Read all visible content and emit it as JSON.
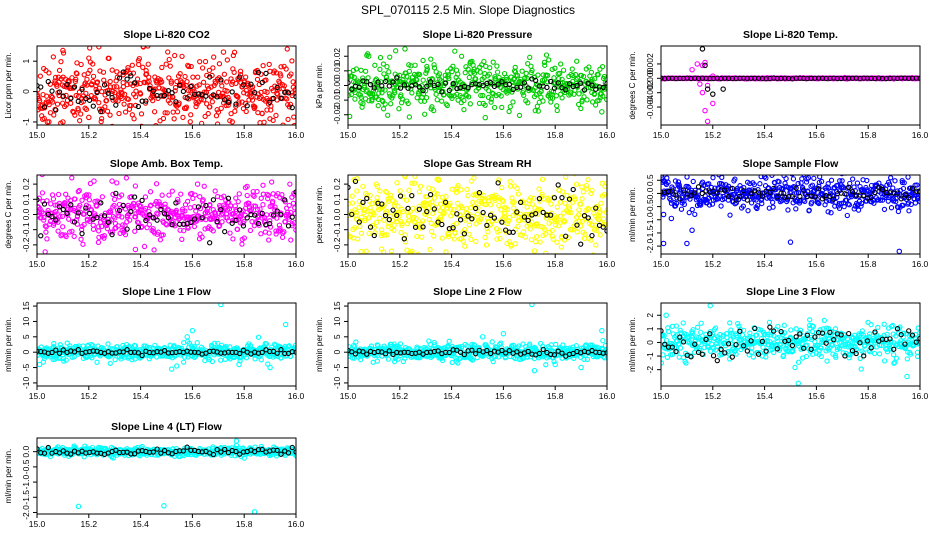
{
  "figure_title": "SPL_070115  2.5 Min. Slope Diagnostics",
  "chart_data": [
    {
      "type": "scatter",
      "title": "Slope Li-820 CO2",
      "ylabel": "Licor ppm per min.",
      "color": "#ff0000",
      "xlim": [
        15.0,
        16.0
      ],
      "ylim": [
        -1.1,
        1.5
      ],
      "xticks": [
        15.0,
        15.2,
        15.4,
        15.6,
        15.8,
        16.0
      ],
      "yticks": [
        -1,
        0,
        1
      ],
      "ytick_labels": [
        "-1",
        "0",
        "1"
      ],
      "spread": 0.55,
      "black_spread": 0.3,
      "outliers": [
        [
          15.04,
          -1.0
        ],
        [
          15.1,
          -1.0
        ],
        [
          15.2,
          -0.85
        ],
        [
          15.1,
          1.35
        ],
        [
          15.72,
          1.3
        ],
        [
          15.57,
          -0.55
        ]
      ]
    },
    {
      "type": "scatter",
      "title": "Slope Li-820 Pressure",
      "ylabel": "kPa per min.",
      "color": "#00cc00",
      "xlim": [
        15.0,
        16.0
      ],
      "ylim": [
        -0.027,
        0.027
      ],
      "xticks": [
        15.0,
        15.2,
        15.4,
        15.6,
        15.8,
        16.0
      ],
      "yticks": [
        -0.02,
        -0.01,
        0.0,
        0.01,
        0.02
      ],
      "ytick_labels": [
        "-0.02",
        "-0.01",
        "0.00",
        "0.01",
        "0.02"
      ],
      "spread": 0.008,
      "black_spread": 0.002,
      "outliers": [
        [
          15.22,
          0.025
        ],
        [
          15.53,
          -0.022
        ],
        [
          15.98,
          -0.018
        ],
        [
          15.08,
          0.02
        ]
      ]
    },
    {
      "type": "scatter",
      "title": "Slope Li-820 Temp.",
      "ylabel": "degrees C per min.",
      "color": "#ff00ff",
      "xlim": [
        15.0,
        16.0
      ],
      "ylim": [
        -0.0065,
        0.0045
      ],
      "xticks": [
        15.0,
        15.2,
        15.4,
        15.6,
        15.8,
        16.0
      ],
      "yticks": [
        -0.004,
        -0.002,
        0.0,
        0.002
      ],
      "ytick_labels": [
        "-0.004",
        "-0.002",
        "0.000",
        "0.002"
      ],
      "spread": 3e-05,
      "black_spread": 2e-05,
      "outliers": [
        [
          15.16,
          0.0018
        ],
        [
          15.17,
          0.0022
        ],
        [
          15.14,
          0.002
        ],
        [
          15.12,
          0.0012
        ],
        [
          15.18,
          -0.001
        ],
        [
          15.16,
          -0.002
        ],
        [
          15.2,
          -0.0035
        ],
        [
          15.17,
          -0.0045
        ],
        [
          15.18,
          -0.006
        ],
        [
          15.2,
          0.0003
        ],
        [
          15.15,
          -0.0008
        ]
      ],
      "black_outliers": [
        [
          15.16,
          0.0041
        ],
        [
          15.17,
          0.0018
        ],
        [
          15.18,
          -0.0015
        ],
        [
          15.2,
          -0.0022
        ],
        [
          15.24,
          -0.0015
        ]
      ]
    },
    {
      "type": "scatter",
      "title": "Slope Amb. Box Temp.",
      "ylabel": "degrees C per min.",
      "color": "#ff00ff",
      "xlim": [
        15.0,
        16.0
      ],
      "ylim": [
        -0.26,
        0.26
      ],
      "xticks": [
        15.0,
        15.2,
        15.4,
        15.6,
        15.8,
        16.0
      ],
      "yticks": [
        -0.2,
        -0.1,
        0.0,
        0.1,
        0.2
      ],
      "ytick_labels": [
        "-0.2",
        "-0.1",
        "0.0",
        "0.1",
        "0.2"
      ],
      "spread": 0.09,
      "black_spread": 0.06,
      "outliers": [
        [
          15.22,
          0.22
        ],
        [
          15.29,
          0.22
        ],
        [
          15.38,
          -0.23
        ],
        [
          15.62,
          0.2
        ]
      ]
    },
    {
      "type": "scatter",
      "title": "Slope Gas Stream RH",
      "ylabel": "percent per min.",
      "color": "#ffff00",
      "xlim": [
        15.0,
        16.0
      ],
      "ylim": [
        -0.26,
        0.26
      ],
      "xticks": [
        15.0,
        15.2,
        15.4,
        15.6,
        15.8,
        16.0
      ],
      "yticks": [
        -0.2,
        -0.1,
        0.0,
        0.1,
        0.2
      ],
      "ytick_labels": [
        "-0.2",
        "-0.1",
        "0.0",
        "0.1",
        "0.2"
      ],
      "spread": 0.11,
      "black_spread": 0.08,
      "outliers": [
        [
          15.35,
          0.23
        ],
        [
          15.72,
          -0.24
        ]
      ]
    },
    {
      "type": "scatter",
      "title": "Slope Sample Flow",
      "ylabel": "ml/min per min.",
      "color": "#0000ff",
      "xlim": [
        15.0,
        16.0
      ],
      "ylim": [
        -2.3,
        0.7
      ],
      "xticks": [
        15.0,
        15.2,
        15.4,
        15.6,
        15.8,
        16.0
      ],
      "yticks": [
        -2.0,
        -1.5,
        -1.0,
        -0.5,
        0.0,
        0.5
      ],
      "ytick_labels": [
        "-2.0",
        "-1.5",
        "-1.0",
        "-0.5",
        "0.0",
        "0.5"
      ],
      "spread": 0.32,
      "black_spread": 0.12,
      "outliers": [
        [
          15.01,
          -1.9
        ],
        [
          15.1,
          -1.9
        ],
        [
          15.12,
          -1.4
        ],
        [
          15.5,
          -1.85
        ],
        [
          15.92,
          -2.2
        ],
        [
          15.01,
          -0.8
        ],
        [
          15.04,
          -0.95
        ]
      ]
    },
    {
      "type": "scatter",
      "title": "Slope Line 1 Flow",
      "ylabel": "ml/min per min.",
      "color": "#00ffff",
      "xlim": [
        15.0,
        16.0
      ],
      "ylim": [
        -11,
        16
      ],
      "xticks": [
        15.0,
        15.2,
        15.4,
        15.6,
        15.8,
        16.0
      ],
      "yticks": [
        -10,
        -5,
        0,
        5,
        10,
        15
      ],
      "ytick_labels": [
        "-10",
        "-5",
        "0",
        "5",
        "10",
        "15"
      ],
      "spread": 1.3,
      "black_spread": 0.4,
      "outliers": [
        [
          15.71,
          15.5
        ],
        [
          15.52,
          -5.5
        ],
        [
          15.96,
          9
        ],
        [
          15.01,
          -4
        ],
        [
          15.58,
          5
        ],
        [
          15.6,
          7
        ],
        [
          15.78,
          -4
        ],
        [
          15.9,
          -5
        ]
      ]
    },
    {
      "type": "scatter",
      "title": "Slope Line 2 Flow",
      "ylabel": "ml/min per min.",
      "color": "#00ffff",
      "xlim": [
        15.0,
        16.0
      ],
      "ylim": [
        -11,
        16
      ],
      "xticks": [
        15.0,
        15.2,
        15.4,
        15.6,
        15.8,
        16.0
      ],
      "yticks": [
        -10,
        -5,
        0,
        5,
        10,
        15
      ],
      "ytick_labels": [
        "-10",
        "-5",
        "0",
        "5",
        "10",
        "15"
      ],
      "spread": 1.3,
      "black_spread": 0.5,
      "outliers": [
        [
          15.71,
          15.5
        ],
        [
          15.72,
          -6
        ],
        [
          15.98,
          7
        ],
        [
          15.52,
          5
        ],
        [
          15.6,
          6
        ],
        [
          15.8,
          -4
        ],
        [
          15.9,
          -5
        ]
      ]
    },
    {
      "type": "scatter",
      "title": "Slope Line 3 Flow",
      "ylabel": "ml/min per min.",
      "color": "#00ffff",
      "xlim": [
        15.0,
        16.0
      ],
      "ylim": [
        -3.2,
        2.9
      ],
      "xticks": [
        15.0,
        15.2,
        15.4,
        15.6,
        15.8,
        16.0
      ],
      "yticks": [
        -2,
        -1,
        0,
        1,
        2
      ],
      "ytick_labels": [
        "-2",
        "-1",
        "0",
        "1",
        "2"
      ],
      "spread": 0.6,
      "black_spread": 0.6,
      "outliers": [
        [
          15.19,
          2.7
        ],
        [
          15.53,
          -3.0
        ],
        [
          15.95,
          -2.5
        ],
        [
          15.02,
          2
        ]
      ]
    },
    {
      "type": "scatter",
      "title": "Slope Line 4 (LT) Flow",
      "ylabel": "ml/min per min.",
      "color": "#00ffff",
      "xlim": [
        15.0,
        16.0
      ],
      "ylim": [
        -2.05,
        0.45
      ],
      "xticks": [
        15.0,
        15.2,
        15.4,
        15.6,
        15.8,
        16.0
      ],
      "yticks": [
        -2.0,
        -1.5,
        -1.0,
        -0.5,
        0.0
      ],
      "ytick_labels": [
        "-2.0",
        "-1.5",
        "-1.0",
        "-0.5",
        "0.0"
      ],
      "spread": 0.07,
      "black_spread": 0.05,
      "outliers": [
        [
          15.16,
          -1.8
        ],
        [
          15.49,
          -1.78
        ],
        [
          15.84,
          -1.98
        ],
        [
          15.77,
          0.35
        ]
      ]
    }
  ]
}
